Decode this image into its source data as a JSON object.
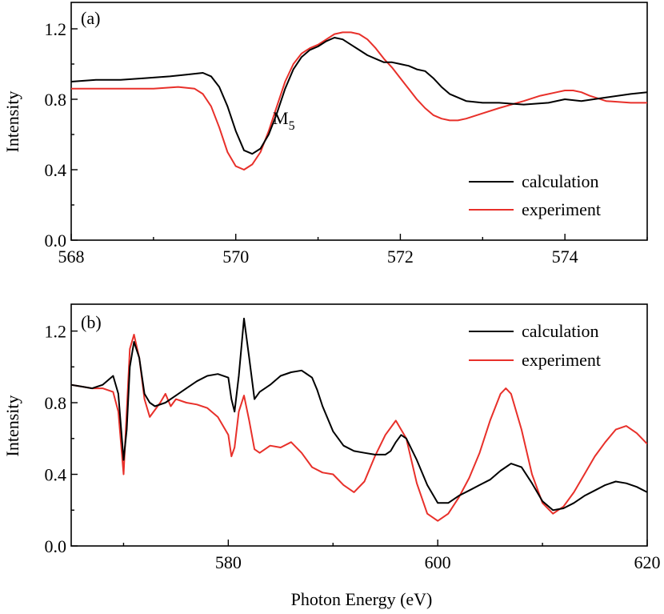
{
  "chart_data": [
    {
      "type": "line",
      "panel_label": "(a)",
      "ylabel": "Intensity",
      "xlabel": "",
      "xlim": [
        568,
        575
      ],
      "ylim": [
        0,
        1.35
      ],
      "xticks": [
        568,
        570,
        572,
        574
      ],
      "xtick_labels": [
        "568",
        "570",
        "572",
        "574"
      ],
      "yticks": [
        0,
        0.4,
        0.8,
        1.2
      ],
      "ytick_labels": [
        "0.0",
        "0.4",
        "0.8",
        "1.2"
      ],
      "annotation": {
        "text": "M",
        "subscript": "5",
        "x": 570.45,
        "y": 0.66
      },
      "legend_position": "lower-right",
      "series": [
        {
          "name": "calculation",
          "color": "#000000",
          "x": [
            568.0,
            568.3,
            568.6,
            568.9,
            569.2,
            569.4,
            569.6,
            569.7,
            569.8,
            569.9,
            570.0,
            570.1,
            570.2,
            570.3,
            570.4,
            570.5,
            570.6,
            570.7,
            570.8,
            570.9,
            571.0,
            571.1,
            571.2,
            571.3,
            571.4,
            571.5,
            571.6,
            571.7,
            571.8,
            571.9,
            572.0,
            572.1,
            572.2,
            572.3,
            572.4,
            572.5,
            572.6,
            572.8,
            573.0,
            573.2,
            573.5,
            573.8,
            574.0,
            574.2,
            574.5,
            574.8,
            575.0
          ],
          "y": [
            0.9,
            0.91,
            0.91,
            0.92,
            0.93,
            0.94,
            0.95,
            0.93,
            0.87,
            0.76,
            0.62,
            0.51,
            0.49,
            0.52,
            0.6,
            0.72,
            0.86,
            0.97,
            1.04,
            1.08,
            1.1,
            1.13,
            1.15,
            1.14,
            1.11,
            1.08,
            1.05,
            1.03,
            1.01,
            1.01,
            1.0,
            0.99,
            0.97,
            0.96,
            0.92,
            0.87,
            0.83,
            0.79,
            0.78,
            0.78,
            0.77,
            0.78,
            0.8,
            0.79,
            0.81,
            0.83,
            0.84
          ]
        },
        {
          "name": "experiment",
          "color": "#e8302a",
          "x": [
            568.0,
            568.5,
            569.0,
            569.3,
            569.5,
            569.6,
            569.7,
            569.8,
            569.9,
            570.0,
            570.1,
            570.2,
            570.3,
            570.4,
            570.5,
            570.6,
            570.7,
            570.8,
            570.9,
            571.0,
            571.1,
            571.2,
            571.3,
            571.4,
            571.5,
            571.6,
            571.7,
            571.8,
            571.9,
            572.0,
            572.1,
            572.2,
            572.3,
            572.4,
            572.5,
            572.6,
            572.7,
            572.8,
            573.0,
            573.2,
            573.5,
            573.7,
            573.9,
            574.0,
            574.1,
            574.2,
            574.3,
            574.5,
            574.8,
            575.0
          ],
          "y": [
            0.86,
            0.86,
            0.86,
            0.87,
            0.86,
            0.83,
            0.76,
            0.64,
            0.5,
            0.42,
            0.4,
            0.43,
            0.5,
            0.62,
            0.76,
            0.9,
            1.0,
            1.06,
            1.09,
            1.11,
            1.14,
            1.17,
            1.18,
            1.18,
            1.17,
            1.14,
            1.09,
            1.03,
            0.98,
            0.92,
            0.86,
            0.8,
            0.75,
            0.71,
            0.69,
            0.68,
            0.68,
            0.69,
            0.72,
            0.75,
            0.79,
            0.82,
            0.84,
            0.85,
            0.85,
            0.84,
            0.82,
            0.79,
            0.78,
            0.78
          ]
        }
      ]
    },
    {
      "type": "line",
      "panel_label": "(b)",
      "ylabel": "Intensity",
      "xlabel": "Photon Energy (eV)",
      "xlim": [
        565,
        620
      ],
      "ylim": [
        0,
        1.35
      ],
      "xticks": [
        580,
        600,
        620
      ],
      "xtick_labels": [
        "580",
        "600",
        "620"
      ],
      "yticks": [
        0,
        0.4,
        0.8,
        1.2
      ],
      "ytick_labels": [
        "0.0",
        "0.4",
        "0.8",
        "1.2"
      ],
      "legend_position": "top-right",
      "series": [
        {
          "name": "calculation",
          "color": "#000000",
          "x": [
            565,
            566,
            567,
            568,
            569,
            569.5,
            570,
            570.3,
            570.6,
            571,
            571.5,
            572,
            572.5,
            573,
            574,
            575,
            576,
            577,
            578,
            579,
            580,
            580.3,
            580.6,
            581,
            581.5,
            582,
            582.5,
            583,
            584,
            585,
            586,
            587,
            588,
            588.5,
            589,
            590,
            591,
            592,
            593,
            594,
            595,
            595.5,
            596,
            596.5,
            597,
            598,
            599,
            600,
            601,
            602,
            603,
            604,
            605,
            606,
            607,
            608,
            609,
            610,
            611,
            612,
            613,
            614,
            615,
            616,
            617,
            618,
            619,
            620
          ],
          "y": [
            0.9,
            0.89,
            0.88,
            0.9,
            0.95,
            0.85,
            0.48,
            0.65,
            1.0,
            1.14,
            1.05,
            0.85,
            0.8,
            0.78,
            0.8,
            0.84,
            0.88,
            0.92,
            0.95,
            0.96,
            0.94,
            0.82,
            0.75,
            0.95,
            1.27,
            1.05,
            0.82,
            0.86,
            0.9,
            0.95,
            0.97,
            0.98,
            0.94,
            0.87,
            0.78,
            0.64,
            0.56,
            0.53,
            0.52,
            0.51,
            0.51,
            0.53,
            0.58,
            0.62,
            0.6,
            0.48,
            0.34,
            0.24,
            0.24,
            0.28,
            0.31,
            0.34,
            0.37,
            0.42,
            0.46,
            0.44,
            0.35,
            0.25,
            0.2,
            0.21,
            0.24,
            0.28,
            0.31,
            0.34,
            0.36,
            0.35,
            0.33,
            0.3
          ]
        },
        {
          "name": "experiment",
          "color": "#e8302a",
          "x": [
            565,
            566,
            567,
            568,
            569,
            569.5,
            570,
            570.3,
            570.6,
            571,
            571.5,
            572,
            572.5,
            573,
            573.5,
            574,
            574.5,
            575,
            576,
            577,
            578,
            579,
            580,
            580.3,
            580.6,
            581,
            581.5,
            582,
            582.5,
            583,
            584,
            585,
            586,
            587,
            588,
            589,
            590,
            591,
            592,
            593,
            594,
            595,
            596,
            597,
            598,
            599,
            600,
            601,
            602,
            603,
            604,
            605,
            606,
            606.5,
            607,
            608,
            609,
            610,
            611,
            612,
            613,
            614,
            615,
            616,
            617,
            618,
            619,
            620
          ],
          "y": [
            0.9,
            0.89,
            0.88,
            0.88,
            0.86,
            0.75,
            0.4,
            0.75,
            1.1,
            1.18,
            1.05,
            0.82,
            0.72,
            0.76,
            0.8,
            0.85,
            0.78,
            0.82,
            0.8,
            0.79,
            0.77,
            0.72,
            0.62,
            0.5,
            0.55,
            0.75,
            0.84,
            0.7,
            0.54,
            0.52,
            0.56,
            0.55,
            0.58,
            0.52,
            0.44,
            0.41,
            0.4,
            0.34,
            0.3,
            0.36,
            0.5,
            0.62,
            0.7,
            0.6,
            0.35,
            0.18,
            0.14,
            0.18,
            0.27,
            0.38,
            0.52,
            0.7,
            0.85,
            0.88,
            0.85,
            0.65,
            0.4,
            0.24,
            0.18,
            0.22,
            0.3,
            0.4,
            0.5,
            0.58,
            0.65,
            0.67,
            0.63,
            0.57
          ]
        }
      ]
    }
  ]
}
